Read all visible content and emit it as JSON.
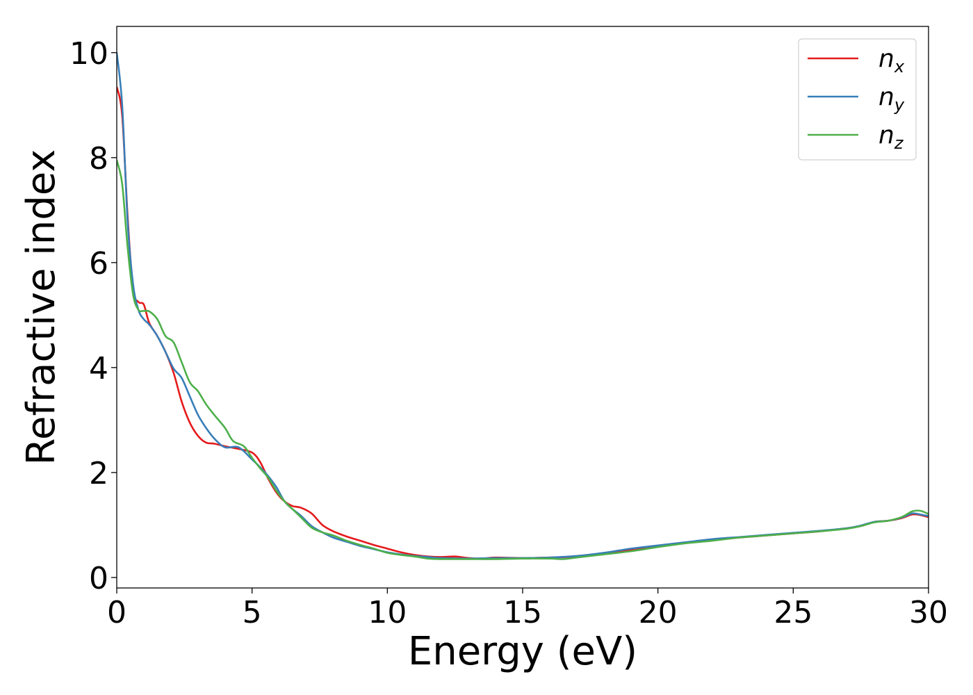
{
  "chart_data": {
    "type": "line",
    "xlabel": "Energy (eV)",
    "ylabel": "Refractive index",
    "xlim": [
      0,
      30
    ],
    "ylim": [
      -0.2,
      10.5
    ],
    "x_ticks": [
      0,
      5,
      10,
      15,
      20,
      25,
      30
    ],
    "y_ticks": [
      0,
      2,
      4,
      6,
      8,
      10
    ],
    "x_tick_labels": [
      "0",
      "5",
      "10",
      "15",
      "20",
      "25",
      "30"
    ],
    "y_tick_labels": [
      "0",
      "2",
      "4",
      "6",
      "8",
      "10"
    ],
    "grid": false,
    "legend_position": "top-right",
    "series": [
      {
        "name": "n",
        "name_sub": "x",
        "color": "#e41a1c",
        "points": [
          [
            0,
            9.35
          ],
          [
            0.2,
            8.8
          ],
          [
            0.4,
            6.9
          ],
          [
            0.6,
            5.5
          ],
          [
            0.8,
            5.25
          ],
          [
            1.0,
            5.2
          ],
          [
            1.2,
            4.85
          ],
          [
            1.5,
            4.6
          ],
          [
            1.8,
            4.3
          ],
          [
            2.1,
            3.9
          ],
          [
            2.4,
            3.35
          ],
          [
            2.7,
            2.95
          ],
          [
            3.0,
            2.7
          ],
          [
            3.3,
            2.57
          ],
          [
            3.6,
            2.55
          ],
          [
            4.0,
            2.5
          ],
          [
            4.5,
            2.45
          ],
          [
            5.0,
            2.38
          ],
          [
            5.3,
            2.2
          ],
          [
            5.6,
            1.88
          ],
          [
            5.9,
            1.62
          ],
          [
            6.2,
            1.45
          ],
          [
            6.5,
            1.36
          ],
          [
            6.8,
            1.33
          ],
          [
            7.2,
            1.22
          ],
          [
            7.6,
            1.0
          ],
          [
            8.0,
            0.88
          ],
          [
            8.5,
            0.78
          ],
          [
            9.0,
            0.7
          ],
          [
            9.5,
            0.62
          ],
          [
            10.0,
            0.55
          ],
          [
            10.5,
            0.48
          ],
          [
            11.0,
            0.43
          ],
          [
            11.5,
            0.4
          ],
          [
            12.0,
            0.39
          ],
          [
            12.5,
            0.4
          ],
          [
            13.0,
            0.37
          ],
          [
            13.5,
            0.36
          ],
          [
            14.0,
            0.38
          ],
          [
            15.0,
            0.37
          ],
          [
            16.0,
            0.38
          ],
          [
            17.0,
            0.4
          ],
          [
            18.0,
            0.46
          ],
          [
            19.0,
            0.53
          ],
          [
            20.0,
            0.6
          ],
          [
            21.0,
            0.66
          ],
          [
            22.0,
            0.71
          ],
          [
            23.0,
            0.76
          ],
          [
            24.0,
            0.8
          ],
          [
            25.0,
            0.84
          ],
          [
            26.0,
            0.88
          ],
          [
            27.0,
            0.94
          ],
          [
            27.5,
            0.98
          ],
          [
            28.0,
            1.06
          ],
          [
            28.5,
            1.08
          ],
          [
            29.0,
            1.13
          ],
          [
            29.4,
            1.2
          ],
          [
            29.7,
            1.19
          ],
          [
            30.0,
            1.15
          ]
        ]
      },
      {
        "name": "n",
        "name_sub": "y",
        "color": "#377eb8",
        "points": [
          [
            0,
            10.0
          ],
          [
            0.2,
            9.0
          ],
          [
            0.4,
            6.8
          ],
          [
            0.6,
            5.6
          ],
          [
            0.8,
            5.1
          ],
          [
            1.0,
            4.92
          ],
          [
            1.2,
            4.82
          ],
          [
            1.5,
            4.6
          ],
          [
            1.8,
            4.3
          ],
          [
            2.1,
            3.98
          ],
          [
            2.4,
            3.8
          ],
          [
            2.7,
            3.45
          ],
          [
            3.0,
            3.1
          ],
          [
            3.3,
            2.85
          ],
          [
            3.6,
            2.65
          ],
          [
            4.0,
            2.48
          ],
          [
            4.5,
            2.48
          ],
          [
            5.0,
            2.25
          ],
          [
            5.3,
            2.1
          ],
          [
            5.6,
            1.93
          ],
          [
            5.9,
            1.72
          ],
          [
            6.2,
            1.45
          ],
          [
            6.5,
            1.3
          ],
          [
            6.8,
            1.18
          ],
          [
            7.2,
            0.98
          ],
          [
            7.6,
            0.86
          ],
          [
            8.0,
            0.76
          ],
          [
            8.5,
            0.68
          ],
          [
            9.0,
            0.6
          ],
          [
            9.5,
            0.54
          ],
          [
            10.0,
            0.48
          ],
          [
            10.5,
            0.44
          ],
          [
            11.0,
            0.41
          ],
          [
            11.5,
            0.39
          ],
          [
            12.0,
            0.37
          ],
          [
            13.0,
            0.36
          ],
          [
            14.0,
            0.37
          ],
          [
            15.0,
            0.37
          ],
          [
            16.0,
            0.38
          ],
          [
            17.0,
            0.41
          ],
          [
            18.0,
            0.47
          ],
          [
            19.0,
            0.55
          ],
          [
            20.0,
            0.61
          ],
          [
            21.0,
            0.67
          ],
          [
            22.0,
            0.73
          ],
          [
            23.0,
            0.77
          ],
          [
            24.0,
            0.81
          ],
          [
            25.0,
            0.85
          ],
          [
            26.0,
            0.89
          ],
          [
            27.0,
            0.94
          ],
          [
            27.5,
            0.99
          ],
          [
            28.0,
            1.06
          ],
          [
            28.5,
            1.08
          ],
          [
            29.0,
            1.14
          ],
          [
            29.4,
            1.22
          ],
          [
            29.7,
            1.2
          ],
          [
            30.0,
            1.17
          ]
        ]
      },
      {
        "name": "n",
        "name_sub": "z",
        "color": "#4daf4a",
        "points": [
          [
            0,
            7.95
          ],
          [
            0.2,
            7.5
          ],
          [
            0.4,
            6.3
          ],
          [
            0.6,
            5.4
          ],
          [
            0.8,
            5.1
          ],
          [
            1.0,
            5.08
          ],
          [
            1.2,
            5.07
          ],
          [
            1.5,
            4.92
          ],
          [
            1.8,
            4.6
          ],
          [
            2.1,
            4.48
          ],
          [
            2.4,
            4.1
          ],
          [
            2.7,
            3.72
          ],
          [
            3.0,
            3.55
          ],
          [
            3.3,
            3.3
          ],
          [
            3.6,
            3.1
          ],
          [
            4.0,
            2.85
          ],
          [
            4.3,
            2.6
          ],
          [
            4.7,
            2.5
          ],
          [
            5.0,
            2.28
          ],
          [
            5.3,
            2.08
          ],
          [
            5.6,
            1.9
          ],
          [
            5.9,
            1.65
          ],
          [
            6.2,
            1.45
          ],
          [
            6.5,
            1.3
          ],
          [
            6.8,
            1.15
          ],
          [
            7.2,
            0.95
          ],
          [
            7.6,
            0.86
          ],
          [
            8.0,
            0.8
          ],
          [
            8.5,
            0.7
          ],
          [
            9.0,
            0.62
          ],
          [
            9.5,
            0.55
          ],
          [
            10.0,
            0.47
          ],
          [
            10.5,
            0.43
          ],
          [
            11.0,
            0.4
          ],
          [
            11.5,
            0.36
          ],
          [
            12.0,
            0.35
          ],
          [
            13.0,
            0.35
          ],
          [
            14.0,
            0.35
          ],
          [
            15.0,
            0.36
          ],
          [
            16.0,
            0.36
          ],
          [
            16.5,
            0.35
          ],
          [
            17.0,
            0.38
          ],
          [
            18.0,
            0.44
          ],
          [
            19.0,
            0.5
          ],
          [
            20.0,
            0.58
          ],
          [
            21.0,
            0.65
          ],
          [
            22.0,
            0.7
          ],
          [
            23.0,
            0.76
          ],
          [
            24.0,
            0.8
          ],
          [
            25.0,
            0.84
          ],
          [
            26.0,
            0.88
          ],
          [
            27.0,
            0.93
          ],
          [
            27.5,
            0.98
          ],
          [
            28.0,
            1.05
          ],
          [
            28.5,
            1.08
          ],
          [
            29.0,
            1.15
          ],
          [
            29.4,
            1.26
          ],
          [
            29.7,
            1.27
          ],
          [
            30.0,
            1.21
          ]
        ]
      }
    ]
  }
}
